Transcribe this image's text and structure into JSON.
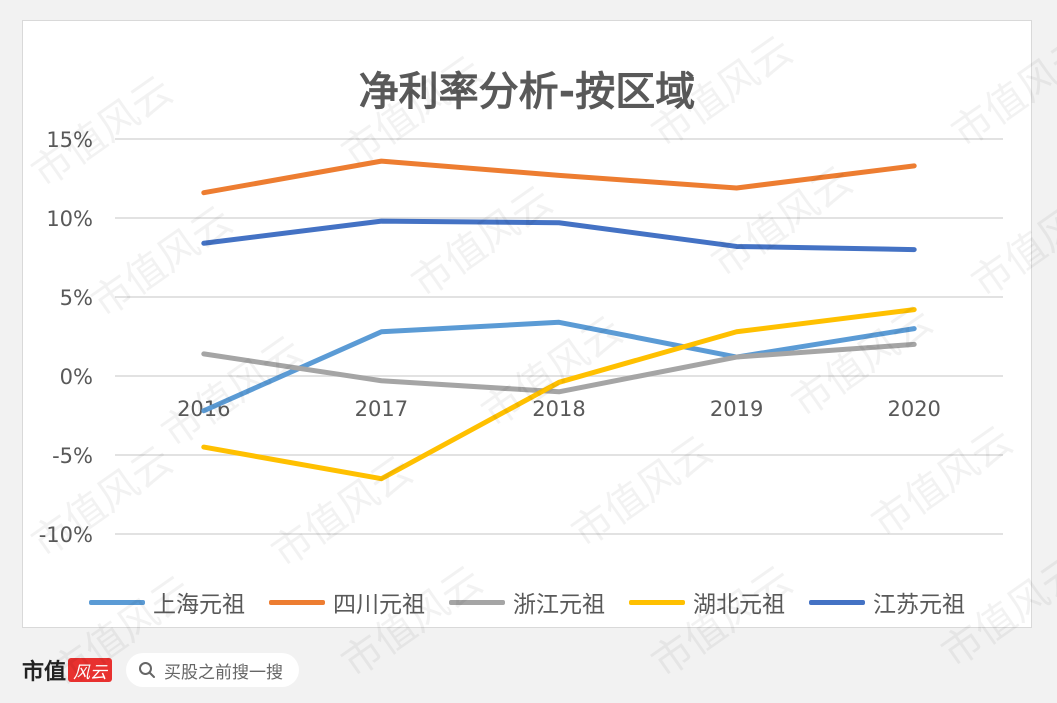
{
  "chart_data": {
    "type": "line",
    "title": "净利率分析-按区域",
    "categories": [
      "2016",
      "2017",
      "2018",
      "2019",
      "2020"
    ],
    "ylim": [
      -10,
      15
    ],
    "yticks": [
      15,
      10,
      5,
      0,
      -5,
      -10
    ],
    "ytick_labels": [
      "15%",
      "10%",
      "5%",
      "0%",
      "-5%",
      "-10%"
    ],
    "grid": true,
    "legend_position": "bottom",
    "series": [
      {
        "name": "上海元祖",
        "color": "#5b9bd5",
        "values": [
          -2.2,
          2.8,
          3.4,
          1.2,
          3.0
        ]
      },
      {
        "name": "四川元祖",
        "color": "#ed7d31",
        "values": [
          11.6,
          13.6,
          12.7,
          11.9,
          13.3
        ]
      },
      {
        "name": "浙江元祖",
        "color": "#a5a5a5",
        "values": [
          1.4,
          -0.3,
          -1.0,
          1.2,
          2.0
        ]
      },
      {
        "name": "湖北元祖",
        "color": "#ffc000",
        "values": [
          -4.5,
          -6.5,
          -0.4,
          2.8,
          4.2
        ]
      },
      {
        "name": "江苏元祖",
        "color": "#4472c4",
        "values": [
          8.4,
          9.8,
          9.7,
          8.2,
          8.0
        ]
      }
    ]
  },
  "footer": {
    "brand_text": "市值",
    "brand_logo_text": "风云",
    "search_placeholder": "买股之前搜一搜"
  },
  "watermark_text": "市值风云"
}
